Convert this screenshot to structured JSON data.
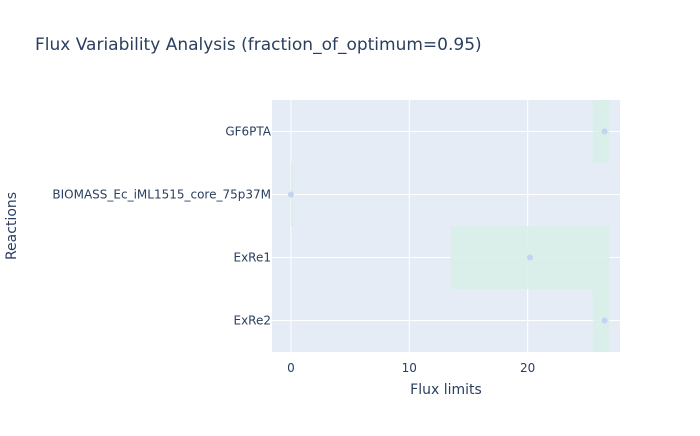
{
  "chart_data": {
    "type": "bar",
    "orientation": "horizontal-range",
    "title": "Flux Variability Analysis (fraction_of_optimum=0.95)",
    "xlabel": "Flux limits",
    "ylabel": "Reactions",
    "xlim": [
      -1.6,
      27.8
    ],
    "xticks": [
      0,
      10,
      20
    ],
    "grid": true,
    "categories": [
      "GF6PTA",
      "BIOMASS_Ec_iML1515_core_75p37M",
      "ExRe1",
      "ExRe2"
    ],
    "ranges": [
      {
        "min": 25.5,
        "max": 26.9
      },
      {
        "min": 0.0,
        "max": 0.18
      },
      {
        "min": 13.5,
        "max": 26.9
      },
      {
        "min": 25.5,
        "max": 26.9
      }
    ],
    "points": [
      26.5,
      0.0,
      20.2,
      26.5
    ],
    "colors": {
      "plot_bg": "#e5ecf6",
      "range_fill": "#d8eee8",
      "point": "#c5d3f2",
      "grid": "#ffffff",
      "text": "#2a3f5f"
    }
  }
}
